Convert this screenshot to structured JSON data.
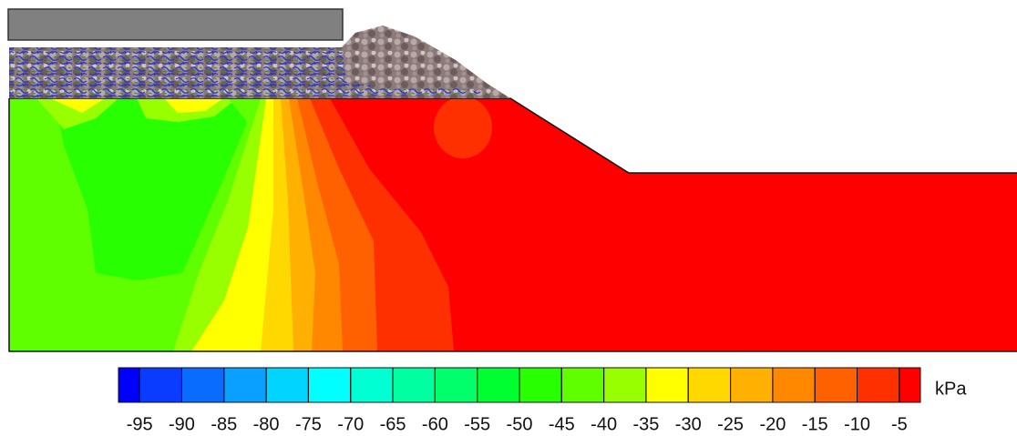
{
  "chart_data": {
    "type": "contour",
    "colorbar": {
      "unit": "kPa",
      "xlim": [
        -97.5,
        -2.5
      ],
      "ticks": [
        -95,
        -90,
        -85,
        -80,
        -75,
        -70,
        -65,
        -60,
        -55,
        -50,
        -45,
        -40,
        -35,
        -30,
        -25,
        -20,
        -15,
        -10,
        -5
      ],
      "colors": [
        "#0000ff",
        "#0a3cff",
        "#0a6cff",
        "#0aa0ff",
        "#00d4ff",
        "#00ffff",
        "#00ffd2",
        "#00ffa0",
        "#00ff6a",
        "#00ff30",
        "#28ff00",
        "#60ff00",
        "#98ff00",
        "#ffff00",
        "#ffd800",
        "#ffb000",
        "#ff8800",
        "#ff6000",
        "#ff3000",
        "#ff0000"
      ]
    }
  }
}
